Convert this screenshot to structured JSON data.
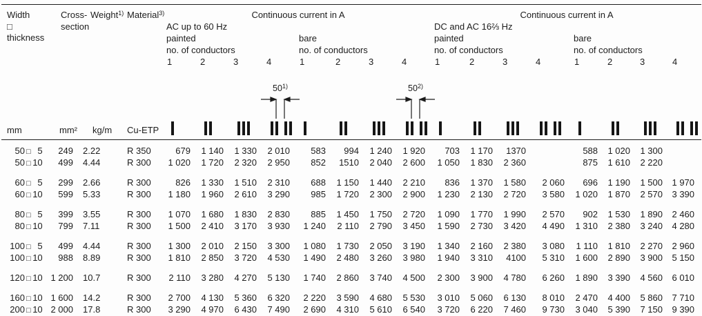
{
  "page": {
    "background": "#fdfdfd",
    "text_color": "#1c1c1c",
    "line_color": "#1c1c1c"
  },
  "size_separator": "□",
  "header": {
    "width_col": {
      "line1": "Width",
      "line2": "□",
      "line3": "thickness",
      "unit": "mm"
    },
    "cross_col": {
      "line1": "Cross-",
      "line2": "section",
      "unit": "mm²"
    },
    "weight_col": {
      "label": "Weight",
      "sup": "1)",
      "unit": "kg/m"
    },
    "material_col": {
      "label": "Material",
      "sup": "3)",
      "unit": "Cu-ETP"
    },
    "groups": [
      {
        "title": "Continuous current in A",
        "subtitle": "AC up to 60 Hz",
        "subgroups": [
          {
            "label": "painted",
            "conductors_label": "no. of conductors",
            "numbers": [
              "1",
              "2",
              "3",
              "4"
            ]
          },
          {
            "label": "bare",
            "conductors_label": "no. of conductors",
            "numbers": [
              "1",
              "2",
              "3",
              "4"
            ]
          }
        ]
      },
      {
        "title": "Continuous current in A",
        "subtitle": "DC and AC 16⅔ Hz",
        "subgroups": [
          {
            "label": "painted",
            "conductors_label": "no. of conductors",
            "numbers": [
              "1",
              "2",
              "3",
              "4"
            ]
          },
          {
            "label": "bare",
            "conductors_label": "no. of conductors",
            "numbers": [
              "1",
              "2",
              "3",
              "4"
            ]
          }
        ]
      }
    ]
  },
  "dimension_annotations": [
    {
      "label": "50",
      "sup": "1)",
      "col_index": 3
    },
    {
      "label": "50",
      "sup": "2)",
      "col_index": 7
    }
  ],
  "conductor_icons": [
    "one-conductor-icon",
    "two-conductor-icon",
    "three-conductor-icon",
    "four-conductor-icon"
  ],
  "row_groups": [
    {
      "rows": [
        {
          "size_w": "50",
          "size_t": "5",
          "cross": "249",
          "weight": "2.22",
          "material": "R 350",
          "values": [
            "679",
            "1 140",
            "1 330",
            "2 010",
            "583",
            "994",
            "1 240",
            "1 920",
            "703",
            "1 170",
            "1370",
            "",
            "588",
            "1 020",
            "1 300",
            ""
          ]
        },
        {
          "size_w": "50",
          "size_t": "10",
          "cross": "499",
          "weight": "4.44",
          "material": "R 300",
          "values": [
            "1 020",
            "1 720",
            "2 320",
            "2 950",
            "852",
            "1510",
            "2 040",
            "2 600",
            "1 050",
            "1 830",
            "2 360",
            "",
            "875",
            "1 610",
            "2 220",
            ""
          ]
        }
      ]
    },
    {
      "rows": [
        {
          "size_w": "60",
          "size_t": "5",
          "cross": "299",
          "weight": "2.66",
          "material": "R 300",
          "values": [
            "826",
            "1 330",
            "1 510",
            "2 310",
            "688",
            "1 150",
            "1 440",
            "2 210",
            "836",
            "1 370",
            "1 580",
            "2 060",
            "696",
            "1 190",
            "1 500",
            "1 970"
          ]
        },
        {
          "size_w": "60",
          "size_t": "10",
          "cross": "599",
          "weight": "5.33",
          "material": "R 300",
          "values": [
            "1 180",
            "1 960",
            "2 610",
            "3 290",
            "985",
            "1 720",
            "2 300",
            "2 900",
            "1 230",
            "2 130",
            "2 720",
            "3 580",
            "1 020",
            "1 870",
            "2 570",
            "3 390"
          ]
        }
      ]
    },
    {
      "rows": [
        {
          "size_w": "80",
          "size_t": "5",
          "cross": "399",
          "weight": "3.55",
          "material": "R 300",
          "values": [
            "1 070",
            "1 680",
            "1 830",
            "2 830",
            "885",
            "1 450",
            "1 750",
            "2 720",
            "1 090",
            "1 770",
            "1 990",
            "2 570",
            "902",
            "1 530",
            "1 890",
            "2 460"
          ]
        },
        {
          "size_w": "80",
          "size_t": "10",
          "cross": "799",
          "weight": "7.11",
          "material": "R 300",
          "values": [
            "1 500",
            "2 410",
            "3 170",
            "3 930",
            "1 240",
            "2 110",
            "2 790",
            "3 450",
            "1 590",
            "2 730",
            "3 420",
            "4 490",
            "1 310",
            "2 380",
            "3 240",
            "4 280"
          ]
        }
      ]
    },
    {
      "rows": [
        {
          "size_w": "100",
          "size_t": "5",
          "cross": "499",
          "weight": "4.44",
          "material": "R 300",
          "values": [
            "1 300",
            "2 010",
            "2 150",
            "3 300",
            "1 080",
            "1 730",
            "2 050",
            "3 190",
            "1 340",
            "2 160",
            "2 380",
            "3 080",
            "1 110",
            "1 810",
            "2 270",
            "2 960"
          ]
        },
        {
          "size_w": "100",
          "size_t": "10",
          "cross": "988",
          "weight": "8.89",
          "material": "R 300",
          "values": [
            "1 810",
            "2 850",
            "3 720",
            "4 530",
            "1 490",
            "2 480",
            "3 260",
            "3 980",
            "1 940",
            "3 310",
            "4100",
            "5 310",
            "1 600",
            "2 890",
            "3 900",
            "5 150"
          ]
        }
      ]
    },
    {
      "rows": [
        {
          "size_w": "120",
          "size_t": "10",
          "cross": "1 200",
          "weight": "10.7",
          "material": "R 300",
          "values": [
            "2 110",
            "3 280",
            "4 270",
            "5 130",
            "1 740",
            "2 860",
            "3 740",
            "4 500",
            "2 300",
            "3 900",
            "4 780",
            "6 260",
            "1 890",
            "3 390",
            "4 560",
            "6 010"
          ]
        }
      ]
    },
    {
      "rows": [
        {
          "size_w": "160",
          "size_t": "10",
          "cross": "1 600",
          "weight": "14.2",
          "material": "R 300",
          "values": [
            "2 700",
            "4 130",
            "5 360",
            "6 320",
            "2 220",
            "3 590",
            "4 680",
            "5 530",
            "3 010",
            "5 060",
            "6 130",
            "8 010",
            "2 470",
            "4 400",
            "5 860",
            "7 710"
          ]
        },
        {
          "size_w": "200",
          "size_t": "10",
          "cross": "2 000",
          "weight": "17.8",
          "material": "R 300",
          "values": [
            "3 290",
            "4 970",
            "6 430",
            "7 490",
            "2 690",
            "4 310",
            "5 610",
            "6 540",
            "3 720",
            "6 220",
            "7 460",
            "9 730",
            "3 040",
            "5 390",
            "7 150",
            "9 390"
          ]
        }
      ]
    }
  ]
}
